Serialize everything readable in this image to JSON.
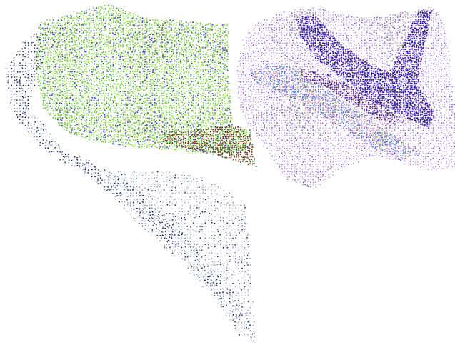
{
  "figure": {
    "panels": [
      {
        "name": "left-point-cloud",
        "palette": {
          "navy": "#1c2a5e",
          "slate": "#8a96b8",
          "pale": "#c8cfe0",
          "green": "#6fce3a",
          "lime": "#9be05a",
          "darkgreen": "#2f7a2a",
          "blue": "#3d4fd0",
          "brown": "#6b3410",
          "rust": "#8a2a12"
        }
      },
      {
        "name": "right-point-cloud",
        "palette": {
          "indigo": "#2a1aa0",
          "violet": "#7a5ad8",
          "lavender": "#b79ae8",
          "purple": "#5e2aa8",
          "steelblue": "#4a86c8",
          "tan": "#c8b48a",
          "pink": "#d8a0d8",
          "maroon": "#5a1a40"
        }
      }
    ]
  }
}
